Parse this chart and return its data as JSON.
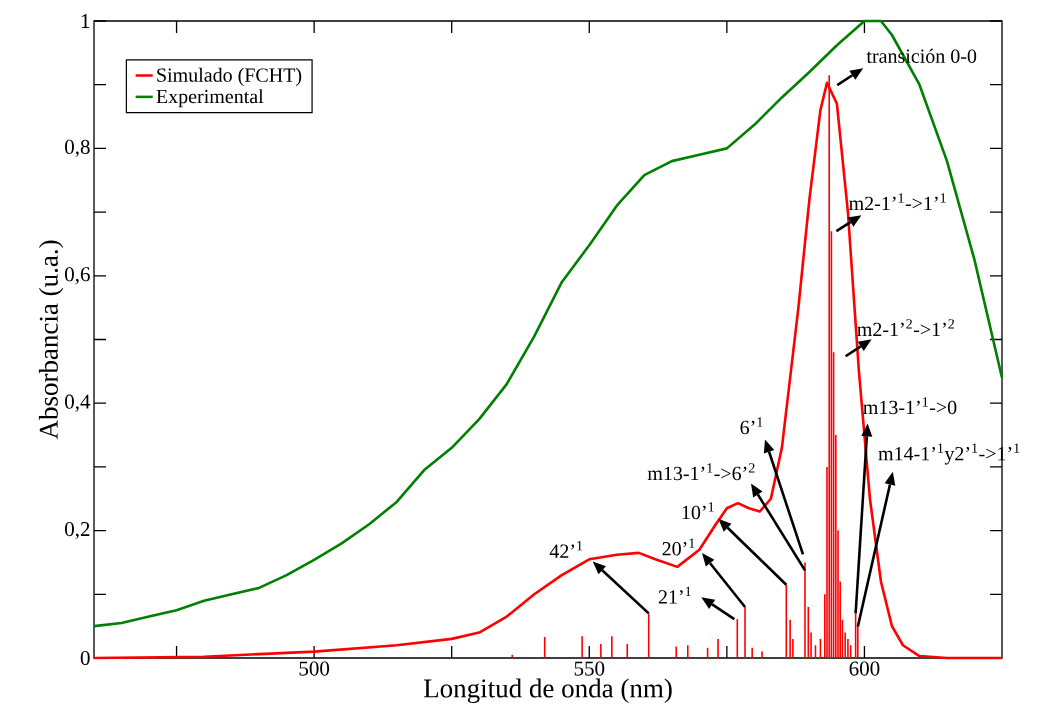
{
  "chart_data": {
    "type": "line",
    "xlabel": "Longitud de onda (nm)",
    "ylabel": "Absorbancia (u.a.)",
    "xlim": [
      460,
      625
    ],
    "ylim": [
      0,
      1
    ],
    "xticks": [
      {
        "value": 475,
        "label": null
      },
      500,
      {
        "value": 525,
        "label": null
      },
      550,
      {
        "value": 575,
        "label": null
      },
      600
    ],
    "yticks": [
      0,
      {
        "value": 0.1,
        "label": null
      },
      {
        "value": 0.2,
        "label": "0,2"
      },
      {
        "value": 0.3,
        "label": null
      },
      {
        "value": 0.4,
        "label": "0,4"
      },
      {
        "value": 0.5,
        "label": null
      },
      {
        "value": 0.6,
        "label": "0,6"
      },
      {
        "value": 0.7,
        "label": null
      },
      {
        "value": 0.8,
        "label": "0,8"
      },
      {
        "value": 0.9,
        "label": null
      },
      1
    ],
    "legend": "top left",
    "series": [
      {
        "name": "Simulado (FCHT)",
        "color": "#ff0000",
        "x": [
          460,
          480,
          500,
          515,
          525,
          530,
          535,
          540,
          545,
          550,
          555,
          559,
          562,
          566,
          570,
          573,
          575,
          577,
          579,
          581,
          583,
          585,
          588,
          590,
          592,
          593.2,
          595,
          597,
          599,
          601,
          603,
          605,
          607,
          610,
          615,
          625
        ],
        "values": [
          0,
          0.002,
          0.01,
          0.02,
          0.03,
          0.04,
          0.065,
          0.1,
          0.13,
          0.155,
          0.162,
          0.165,
          0.155,
          0.143,
          0.17,
          0.21,
          0.235,
          0.243,
          0.235,
          0.23,
          0.25,
          0.33,
          0.55,
          0.72,
          0.86,
          0.903,
          0.87,
          0.7,
          0.45,
          0.25,
          0.12,
          0.05,
          0.02,
          0.003,
          0,
          0
        ]
      },
      {
        "name": "Experimental",
        "color": "#008000",
        "x": [
          460,
          465,
          470,
          475,
          480,
          485,
          490,
          495,
          500,
          505,
          510,
          515,
          520,
          525,
          530,
          535,
          540,
          545,
          550,
          555,
          560,
          565,
          570,
          575,
          580,
          585,
          590,
          595,
          600,
          603,
          605,
          610,
          615,
          620,
          625
        ],
        "values": [
          0.05,
          0.055,
          0.065,
          0.075,
          0.09,
          0.1,
          0.11,
          0.13,
          0.154,
          0.18,
          0.21,
          0.245,
          0.295,
          0.33,
          0.375,
          0.43,
          0.505,
          0.59,
          0.648,
          0.71,
          0.758,
          0.78,
          0.79,
          0.8,
          0.837,
          0.88,
          0.92,
          0.962,
          1.0,
          1.0,
          0.978,
          0.9,
          0.78,
          0.625,
          0.44
        ]
      },
      {
        "type": "bar",
        "color": "#ff0000",
        "x": [
          536,
          541.9,
          548.7,
          552.1,
          554.1,
          556.9,
          560.8,
          565.8,
          567.9,
          571.5,
          573.4,
          576.9,
          578.3,
          579.6,
          581.4,
          585.8,
          586.5,
          587,
          589.2,
          589.8,
          590.3,
          591.1,
          592,
          592.8,
          593.2,
          593.6,
          594.0,
          594.4,
          594.8,
          595.2,
          595.6,
          596,
          596.5,
          597,
          597.5,
          598.4,
          598.8
        ],
        "values": [
          0.005,
          0.033,
          0.034,
          0.022,
          0.034,
          0.022,
          0.07,
          0.018,
          0.02,
          0.016,
          0.03,
          0.061,
          0.08,
          0.016,
          0.01,
          0.115,
          0.06,
          0.03,
          0.15,
          0.08,
          0.04,
          0.02,
          0.03,
          0.1,
          0.3,
          0.915,
          0.67,
          0.48,
          0.35,
          0.2,
          0.12,
          0.06,
          0.04,
          0.03,
          0.02,
          0.07,
          0.049
        ]
      }
    ],
    "annotations": [
      {
        "text": "42’$^{1}$",
        "x": 560.8,
        "y": 0.07
      },
      {
        "text": "21’$^{1}$",
        "x": 576.9,
        "y": 0.061
      },
      {
        "text": "20’$^{1}$",
        "x": 578.3,
        "y": 0.08
      },
      {
        "text": "10’$^{1}$",
        "x": 585.8,
        "y": 0.115
      },
      {
        "text": "m13-1’$^{1}$->6’$^{2}$",
        "x": 589.2,
        "y": 0.15
      },
      {
        "text": "6’$^{1}$",
        "x": 589.2,
        "y": 0.15
      },
      {
        "text": "m13-1’$^{1}$->0",
        "x": 598.4,
        "y": 0.07
      },
      {
        "text": "m14-1’$^{1}$y2’$^{1}$->1’$^{1}$",
        "x": 598.8,
        "y": 0.049
      },
      {
        "text": "m2-1’$^{2}$->1’$^{2}$",
        "x": 594.4,
        "y": 0.48
      },
      {
        "text": "m2-1’$^{1}$->1’$^{1}$",
        "x": 594.0,
        "y": 0.67
      },
      {
        "text": "transición 0-0",
        "x": 593.6,
        "y": 0.915
      }
    ]
  }
}
